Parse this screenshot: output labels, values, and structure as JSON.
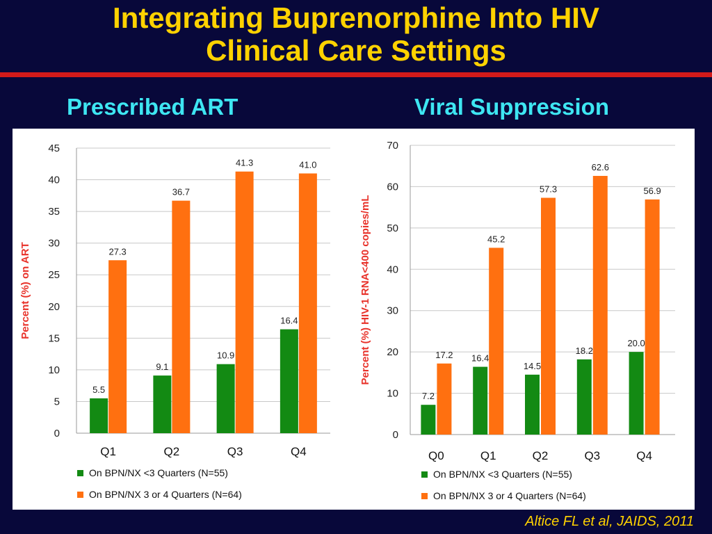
{
  "slide": {
    "title_line1": "Integrating Buprenorphine Into HIV",
    "title_line2": "Clinical Care Settings",
    "citation": "Altice FL et al, JAIDS, 2011"
  },
  "colors": {
    "background": "#08083a",
    "title": "#ffd200",
    "rule": "#d21a1a",
    "heading": "#3ee6f2",
    "green_series": "#138a13",
    "orange_series": "#ff7010",
    "axis_label": "#e8322a"
  },
  "chart_data": [
    {
      "type": "bar",
      "title": "Prescribed ART",
      "xlabel": "",
      "ylabel": "Percent (%) on ART",
      "ylim": [
        0,
        45
      ],
      "yticks": [
        0,
        5,
        10,
        15,
        20,
        25,
        30,
        35,
        40,
        45
      ],
      "grid": true,
      "legend_position": "bottom",
      "categories": [
        "Q1",
        "Q2",
        "Q3",
        "Q4"
      ],
      "series": [
        {
          "name": "On BPN/NX <3 Quarters (N=55)",
          "color": "#138a13",
          "values": [
            5.5,
            9.1,
            10.9,
            16.4
          ]
        },
        {
          "name": "On BPN/NX 3 or 4 Quarters (N=64)",
          "color": "#ff7010",
          "values": [
            27.3,
            36.7,
            41.3,
            41.0
          ]
        }
      ]
    },
    {
      "type": "bar",
      "title": "Viral Suppression",
      "xlabel": "",
      "ylabel": "Percent (%) HIV-1 RNA<400 copies/mL",
      "ylim": [
        0,
        70
      ],
      "yticks": [
        0,
        10,
        20,
        30,
        40,
        50,
        60,
        70
      ],
      "grid": true,
      "legend_position": "bottom",
      "categories": [
        "Q0",
        "Q1",
        "Q2",
        "Q3",
        "Q4"
      ],
      "series": [
        {
          "name": "On BPN/NX <3 Quarters (N=55)",
          "color": "#138a13",
          "values": [
            7.2,
            16.4,
            14.5,
            18.2,
            20.0
          ]
        },
        {
          "name": "On BPN/NX 3 or 4 Quarters (N=64)",
          "color": "#ff7010",
          "values": [
            17.2,
            45.2,
            57.3,
            62.6,
            56.9
          ]
        }
      ]
    }
  ]
}
